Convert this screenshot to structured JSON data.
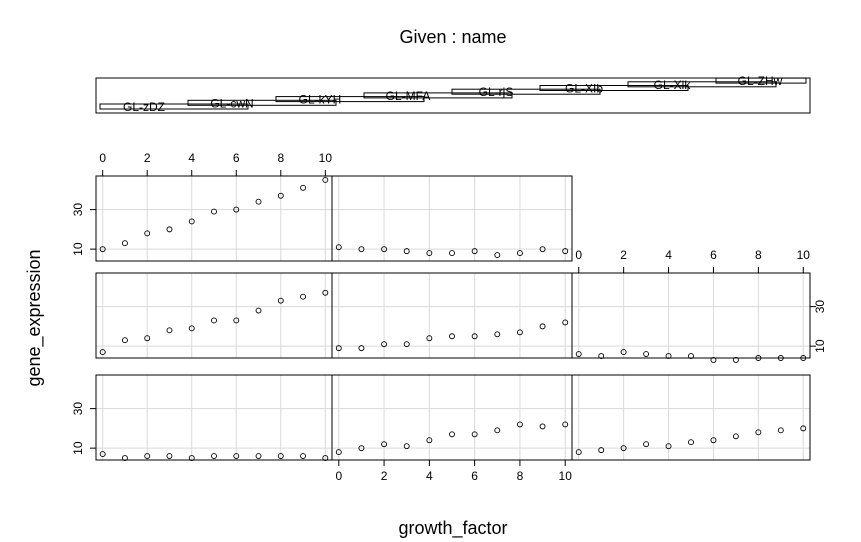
{
  "chart_data": {
    "type": "scatter",
    "title": "Given : name",
    "xlabel": "growth_factor",
    "ylabel": "gene_expression",
    "xlim": [
      -0.3,
      10.3
    ],
    "ylim": [
      4,
      47
    ],
    "x_ticks": [
      0,
      2,
      4,
      6,
      8,
      10
    ],
    "y_ticks": [
      10,
      30
    ],
    "grid": true,
    "given_levels": [
      "GL-zDZ",
      "GL-cwN",
      "GL-kYH",
      "GL-MFA",
      "GL-rjS",
      "GL-XIb",
      "GL-Xik",
      "GL-ZHw"
    ],
    "panels": [
      {
        "x": [
          0,
          1,
          2,
          3,
          4,
          5,
          6,
          7,
          8,
          9,
          10
        ],
        "y": [
          10,
          13,
          18,
          20,
          24,
          29,
          30,
          34,
          37,
          41,
          45
        ]
      },
      {
        "x": [
          0,
          1,
          2,
          3,
          4,
          5,
          6,
          7,
          8,
          9,
          10
        ],
        "y": [
          11,
          10,
          10,
          9,
          8,
          8,
          9,
          7,
          8,
          10,
          9
        ]
      },
      {
        "x": [
          0,
          1,
          2,
          3,
          4,
          5,
          6,
          7,
          8,
          9,
          10
        ],
        "y": [
          7,
          13,
          14,
          18,
          19,
          23,
          23,
          28,
          33,
          35,
          37
        ]
      },
      {
        "x": [
          0,
          1,
          2,
          3,
          4,
          5,
          6,
          7,
          8,
          9,
          10
        ],
        "y": [
          9,
          9,
          11,
          11,
          14,
          15,
          15,
          16,
          17,
          20,
          22
        ]
      },
      {
        "x": [
          0,
          1,
          2,
          3,
          4,
          5,
          6,
          7,
          8,
          9,
          10
        ],
        "y": [
          6,
          5,
          7,
          6,
          5,
          5,
          3,
          3,
          4,
          4,
          4
        ]
      },
      {
        "x": [
          0,
          1,
          2,
          3,
          4,
          5,
          6,
          7,
          8,
          9,
          10
        ],
        "y": [
          7,
          5,
          6,
          6,
          5,
          6,
          6,
          6,
          6,
          6,
          5
        ]
      },
      {
        "x": [
          0,
          1,
          2,
          3,
          4,
          5,
          6,
          7,
          8,
          9,
          10
        ],
        "y": [
          8,
          10,
          12,
          11,
          14,
          17,
          17,
          19,
          22,
          21,
          22
        ]
      },
      {
        "x": [
          0,
          1,
          2,
          3,
          4,
          5,
          6,
          7,
          8,
          9,
          10
        ],
        "y": [
          8,
          9,
          10,
          12,
          11,
          13,
          14,
          16,
          18,
          19,
          20
        ]
      }
    ]
  }
}
